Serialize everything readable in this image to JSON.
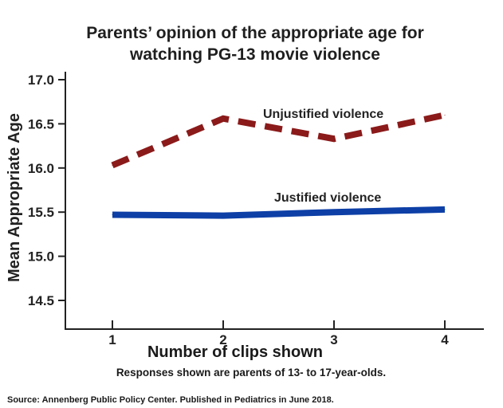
{
  "chart_data": {
    "type": "line",
    "title_lines": [
      "Parents’ opinion of the appropriate age for",
      "watching PG-13 movie violence"
    ],
    "xlabel": "Number of clips shown",
    "ylabel": "Mean Appropriate Age",
    "x": [
      1,
      2,
      3,
      4
    ],
    "x_tick_labels": [
      "1",
      "2",
      "3",
      "4"
    ],
    "y_tick_labels": [
      "14.5",
      "15.0",
      "15.5",
      "16.0",
      "16.5",
      "17.0"
    ],
    "y_ticks": [
      14.5,
      15.0,
      15.5,
      16.0,
      16.5,
      17.0
    ],
    "ylim": [
      14.2,
      17.0
    ],
    "grid": false,
    "series": [
      {
        "name": "Unjustified violence",
        "values": [
          16.03,
          16.56,
          16.33,
          16.6
        ],
        "color": "#8b1a1a",
        "style": "dashed"
      },
      {
        "name": "Justified violence",
        "values": [
          15.47,
          15.46,
          15.5,
          15.53
        ],
        "color": "#0d3fa6",
        "style": "solid"
      }
    ],
    "note": "Responses shown are parents of 13- to 17-year-olds.",
    "source": "Source: Annenberg Public Policy Center. Published in Pediatrics in June 2018."
  }
}
